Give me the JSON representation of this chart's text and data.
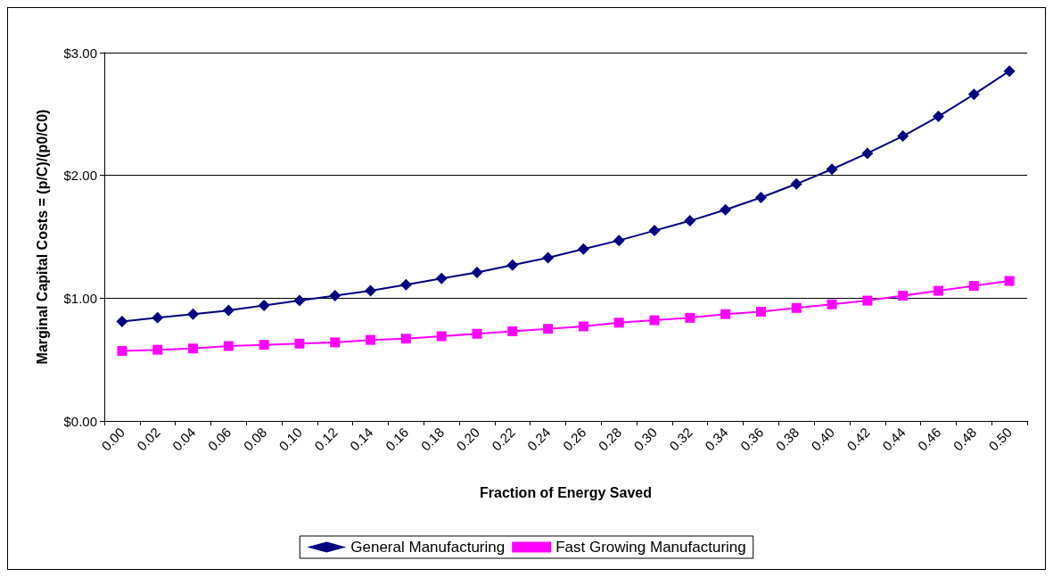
{
  "chart_data": {
    "type": "line",
    "xlabel": "Fraction of Energy Saved",
    "ylabel": "Marginal Capital Costs = (p/C)/(p0/C0)",
    "categories": [
      "0.00",
      "0.02",
      "0.04",
      "0.06",
      "0.08",
      "0.10",
      "0.12",
      "0.14",
      "0.16",
      "0.18",
      "0.20",
      "0.22",
      "0.24",
      "0.26",
      "0.28",
      "0.30",
      "0.32",
      "0.34",
      "0.36",
      "0.38",
      "0.40",
      "0.42",
      "0.44",
      "0.46",
      "0.48",
      "0.50"
    ],
    "series": [
      {
        "name": "General Manufacturing",
        "color": "#000080",
        "marker": "diamond",
        "values": [
          0.81,
          0.84,
          0.87,
          0.9,
          0.94,
          0.98,
          1.02,
          1.06,
          1.11,
          1.16,
          1.21,
          1.27,
          1.33,
          1.4,
          1.47,
          1.55,
          1.63,
          1.72,
          1.82,
          1.93,
          2.05,
          2.18,
          2.32,
          2.48,
          2.66,
          2.85
        ]
      },
      {
        "name": "Fast Growing Manufacturing",
        "color": "#ff00ff",
        "marker": "square",
        "values": [
          0.57,
          0.58,
          0.59,
          0.61,
          0.62,
          0.63,
          0.64,
          0.66,
          0.67,
          0.69,
          0.71,
          0.73,
          0.75,
          0.77,
          0.8,
          0.82,
          0.84,
          0.87,
          0.89,
          0.92,
          0.95,
          0.98,
          1.02,
          1.06,
          1.1,
          1.14
        ]
      }
    ],
    "ylim": [
      0,
      3
    ],
    "yticks": [
      {
        "value": 0,
        "label": "$0.00"
      },
      {
        "value": 1,
        "label": "$1.00"
      },
      {
        "value": 2,
        "label": "$2.00"
      },
      {
        "value": 3,
        "label": "$3.00"
      }
    ],
    "grid": "y",
    "legend": "bottom",
    "line_style": "solid"
  }
}
